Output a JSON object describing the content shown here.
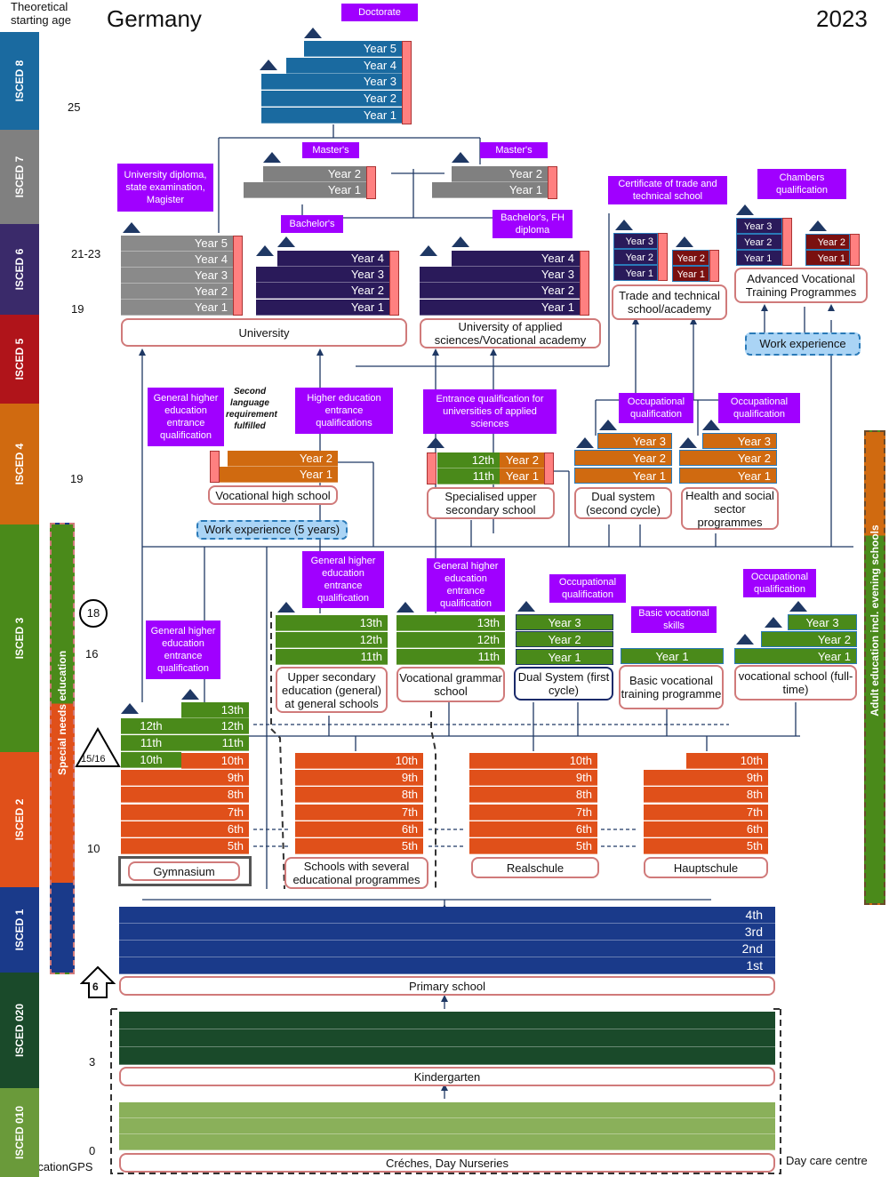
{
  "header": {
    "axis_label": "Theoretical starting age",
    "country": "Germany",
    "year": "2023",
    "copyright": "© EducationGPS"
  },
  "isced_levels": [
    {
      "label": "ISCED 8",
      "color": "#1a6aa0"
    },
    {
      "label": "ISCED 7",
      "color": "#808080"
    },
    {
      "label": "ISCED 6",
      "color": "#3a2a6a"
    },
    {
      "label": "ISCED 5",
      "color": "#b0141a"
    },
    {
      "label": "ISCED 4",
      "color": "#d06a10"
    },
    {
      "label": "ISCED 3",
      "color": "#4a8a1a"
    },
    {
      "label": "ISCED 2",
      "color": "#e0501a"
    },
    {
      "label": "ISCED 1",
      "color": "#1a3a8a"
    },
    {
      "label": "ISCED 020",
      "color": "#1a4a2a"
    },
    {
      "label": "ISCED 010",
      "color": "#6a9a3a"
    }
  ],
  "ages": [
    "25",
    "21-23",
    "19",
    "19",
    "16",
    "10",
    "3",
    "0"
  ],
  "markers": {
    "circle": "18",
    "triangle": "15/16",
    "arrow": "6"
  },
  "side_labels": {
    "special": "Special needs education",
    "adult": "Adult education incl. evening schools"
  },
  "doctorate": {
    "qual": "Doctorate",
    "years": [
      "Year 5",
      "Year 4",
      "Year 3",
      "Year 2",
      "Year 1"
    ]
  },
  "masters": {
    "qual_left": "Master's",
    "qual_right": "Master's",
    "years": [
      "Year 2",
      "Year 1"
    ]
  },
  "university": {
    "qual": "University diploma, state examination, Magister",
    "years": [
      "Year 5",
      "Year 4",
      "Year 3",
      "Year 2",
      "Year 1"
    ],
    "name": "University",
    "bachelor_qual": "Bachelor's",
    "bachelor_years": [
      "Year 4",
      "Year 3",
      "Year 2",
      "Year 1"
    ]
  },
  "uas": {
    "qual": "Bachelor's, FH diploma",
    "years": [
      "Year 4",
      "Year 3",
      "Year 2",
      "Year 1"
    ],
    "name": "University of applied sciences/Vocational academy"
  },
  "trade": {
    "qual": "Certificate of trade and technical school",
    "years_a": [
      "Year 3",
      "Year 2",
      "Year 1"
    ],
    "years_b": [
      "Year 2",
      "Year 1"
    ],
    "name": "Trade and technical school/academy"
  },
  "advanced": {
    "qual": "Chambers qualification",
    "years_a": [
      "Year 3",
      "Year 2",
      "Year 1"
    ],
    "years_b": [
      "Year 2",
      "Year 1"
    ],
    "name": "Advanced Vocational Training Programmes",
    "work": "Work experience"
  },
  "vhs": {
    "qual_left": "General higher education entrance qualification",
    "note": "Second language requirement fulfilled",
    "qual_right": "Higher education entrance qualifications",
    "years": [
      "Year 2",
      "Year 1"
    ],
    "name": "Vocational high school",
    "work": "Work experience (5 years)"
  },
  "sus": {
    "qual": "Entrance qualification for universities of applied sciences",
    "green": [
      "12th",
      "11th"
    ],
    "orange": [
      "Year 2",
      "Year 1"
    ],
    "name": "Specialised upper secondary school"
  },
  "dual2": {
    "qual": "Occupational qualification",
    "years": [
      "Year 3",
      "Year 2",
      "Year 1"
    ],
    "name": "Dual system (second cycle)"
  },
  "health": {
    "qual": "Occupational qualification",
    "years": [
      "Year 3",
      "Year 2",
      "Year 1"
    ],
    "name": "Health and social sector programmes"
  },
  "gym_upper": {
    "qual": "General higher education entrance qualification",
    "left": [
      "12th",
      "11th",
      "10th"
    ],
    "right": [
      "13th",
      "12th",
      "11th"
    ]
  },
  "upper_general": {
    "qual": "General higher education entrance qualification",
    "years": [
      "13th",
      "12th",
      "11th"
    ],
    "name": "Upper secondary education (general) at general schools"
  },
  "voc_grammar": {
    "qual": "General higher education entrance qualification",
    "years": [
      "13th",
      "12th",
      "11th"
    ],
    "name": "Vocational grammar school"
  },
  "dual1": {
    "qual": "Occupational qualification",
    "years": [
      "Year 3",
      "Year 2",
      "Year 1"
    ],
    "name": "Dual System (first cycle)"
  },
  "basic_voc": {
    "qual": "Basic vocational skills",
    "years": [
      "Year 1"
    ],
    "name": "Basic vocational training programme"
  },
  "voc_school": {
    "qual": "Occupational qualification",
    "years": [
      "Year 3",
      "Year 2",
      "Year 1"
    ],
    "name": "vocational school (full-time)"
  },
  "lower_secondary": {
    "grades": [
      "10th",
      "9th",
      "8th",
      "7th",
      "6th",
      "5th"
    ],
    "schools": [
      "Gymnasium",
      "Schools with several educational programmes",
      "Realschule",
      "Hauptschule"
    ]
  },
  "primary": {
    "grades": [
      "4th",
      "3rd",
      "2nd",
      "1st"
    ],
    "name": "Primary school"
  },
  "kindergarten": {
    "name": "Kindergarten"
  },
  "creche": {
    "name": "Créches, Day Nurseries",
    "side": "Day care centre"
  }
}
